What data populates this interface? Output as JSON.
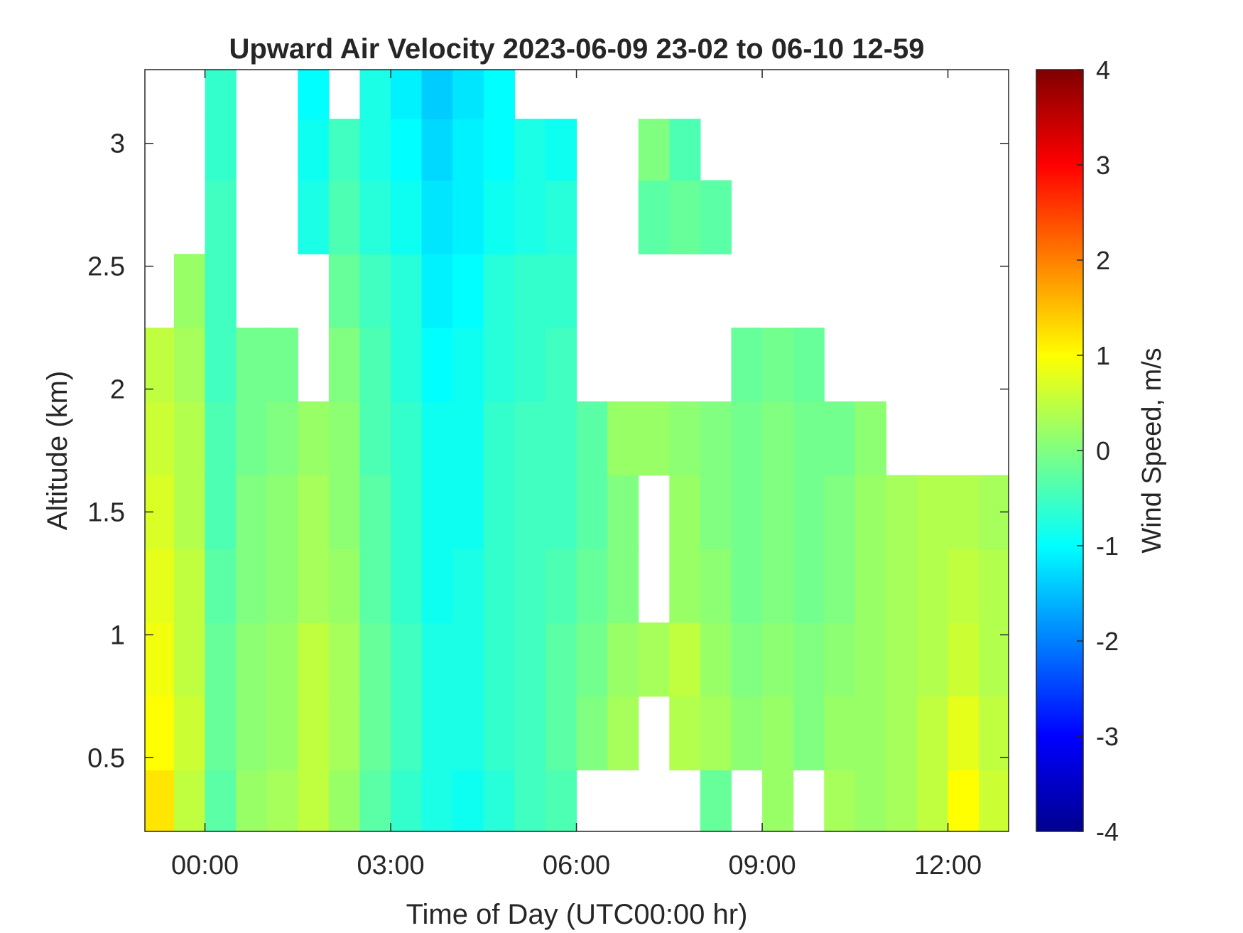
{
  "chart_data": {
    "type": "heatmap",
    "title": "Upward Air Velocity 2023-06-09 23-02 to 06-10 12-59",
    "xlabel": "Time of Day (UTC00:00 hr)",
    "ylabel": "Altitude (km)",
    "colorbar_label": "Wind Speed, m/s",
    "x_unit": "hours relative to 2023-06-10 00:00 UTC",
    "xlim": [
      -0.97,
      12.98
    ],
    "ylim": [
      0.2,
      3.3
    ],
    "clim": [
      -4,
      4
    ],
    "x_ticks": [
      0,
      3,
      6,
      9,
      12
    ],
    "x_tick_labels": [
      "00:00",
      "03:00",
      "06:00",
      "09:00",
      "12:00"
    ],
    "y_ticks": [
      0.5,
      1,
      1.5,
      2,
      2.5,
      3
    ],
    "y_tick_labels": [
      "0.5",
      "1",
      "1.5",
      "2",
      "2.5",
      "3"
    ],
    "colorbar_ticks": [
      -4,
      -3,
      -2,
      -1,
      0,
      1,
      2,
      3,
      4
    ],
    "colorbar_tick_labels": [
      "-4",
      "-3",
      "-2",
      "-1",
      "0",
      "1",
      "2",
      "3",
      "4"
    ],
    "colormap": "jet",
    "colormap_stops": [
      "#00008f",
      "#0000ff",
      "#0080ff",
      "#00ffff",
      "#80ff80",
      "#ffff00",
      "#ff8000",
      "#ff0000",
      "#800000"
    ],
    "grid": false,
    "time_bins": [
      -0.75,
      -0.25,
      0.25,
      0.75,
      1.25,
      1.75,
      2.25,
      2.75,
      3.25,
      3.75,
      4.25,
      4.75,
      5.25,
      5.75,
      6.25,
      6.75,
      7.25,
      7.75,
      8.25,
      8.75,
      9.25,
      9.75,
      10.25,
      10.75,
      11.25,
      11.75,
      12.25,
      12.75
    ],
    "altitude_bins": [
      0.3,
      0.6,
      0.9,
      1.2,
      1.5,
      1.8,
      2.1,
      2.4,
      2.7,
      3.0,
      3.2
    ],
    "values": [
      [
        1.2,
        0.5,
        -0.3,
        0.2,
        0.3,
        0.5,
        0.2,
        -0.3,
        -0.6,
        -0.8,
        -0.9,
        -0.7,
        -0.5,
        -0.4,
        null,
        null,
        null,
        null,
        -0.2,
        null,
        0.2,
        null,
        0.3,
        0.2,
        0.3,
        0.5,
        1.0,
        0.6
      ],
      [
        1.0,
        0.6,
        -0.2,
        0.1,
        0.2,
        0.5,
        0.3,
        -0.2,
        -0.5,
        -0.8,
        -0.8,
        -0.6,
        -0.5,
        -0.3,
        0.0,
        0.3,
        null,
        0.4,
        0.3,
        0.1,
        0.2,
        0.0,
        0.2,
        0.2,
        0.3,
        0.5,
        0.8,
        0.5
      ],
      [
        0.9,
        0.5,
        -0.2,
        0.1,
        0.2,
        0.5,
        0.3,
        -0.2,
        -0.5,
        -0.8,
        -0.8,
        -0.6,
        -0.5,
        -0.3,
        -0.1,
        0.2,
        0.3,
        0.5,
        0.2,
        0.0,
        0.1,
        0.0,
        0.1,
        0.2,
        0.3,
        0.4,
        0.6,
        0.4
      ],
      [
        0.8,
        0.5,
        -0.3,
        0.0,
        0.1,
        0.3,
        0.2,
        -0.3,
        -0.6,
        -0.9,
        -0.8,
        -0.6,
        -0.5,
        -0.4,
        -0.2,
        0.0,
        null,
        0.2,
        0.1,
        -0.1,
        0.0,
        -0.1,
        0.0,
        0.2,
        0.3,
        0.4,
        0.5,
        0.4
      ],
      [
        0.7,
        0.4,
        -0.4,
        0.0,
        0.1,
        0.3,
        0.1,
        -0.3,
        -0.6,
        -0.9,
        -0.9,
        -0.6,
        -0.5,
        -0.5,
        -0.3,
        0.0,
        null,
        0.2,
        0.0,
        -0.1,
        0.0,
        -0.1,
        0.0,
        0.2,
        0.3,
        0.4,
        0.4,
        0.3
      ],
      [
        0.6,
        0.4,
        -0.4,
        -0.1,
        0.0,
        0.2,
        0.1,
        -0.4,
        -0.6,
        -0.9,
        -0.9,
        -0.6,
        -0.5,
        -0.5,
        -0.3,
        0.2,
        0.2,
        0.1,
        0.0,
        -0.1,
        0.0,
        -0.1,
        -0.1,
        0.1,
        null,
        null,
        null,
        null
      ],
      [
        0.5,
        0.3,
        -0.5,
        -0.1,
        -0.1,
        null,
        0.0,
        -0.4,
        -0.7,
        -1.0,
        -0.9,
        -0.7,
        -0.6,
        -0.5,
        null,
        null,
        null,
        null,
        null,
        -0.2,
        -0.1,
        -0.2,
        null,
        null,
        null,
        null,
        null,
        null
      ],
      [
        null,
        0.2,
        -0.5,
        null,
        null,
        null,
        -0.2,
        -0.5,
        -0.7,
        -1.1,
        -1.0,
        -0.7,
        -0.6,
        -0.6,
        null,
        null,
        null,
        null,
        null,
        null,
        null,
        null,
        null,
        null,
        null,
        null,
        null,
        null
      ],
      [
        null,
        null,
        -0.5,
        null,
        null,
        -0.8,
        -0.4,
        -0.7,
        -0.9,
        -1.2,
        -1.1,
        -0.9,
        -0.8,
        -0.7,
        null,
        null,
        -0.3,
        -0.2,
        -0.3,
        null,
        null,
        null,
        null,
        null,
        null,
        null,
        null,
        null
      ],
      [
        null,
        null,
        -0.6,
        null,
        null,
        -0.9,
        -0.5,
        -0.8,
        -1.0,
        -1.3,
        -1.1,
        -1.0,
        -0.8,
        -0.9,
        null,
        null,
        0.0,
        -0.4,
        null,
        null,
        null,
        null,
        null,
        null,
        null,
        null,
        null,
        null
      ],
      [
        null,
        null,
        -0.6,
        null,
        null,
        -1.0,
        null,
        -0.8,
        -1.1,
        -1.4,
        -1.2,
        -1.0,
        null,
        null,
        null,
        null,
        null,
        null,
        null,
        null,
        null,
        null,
        null,
        null,
        null,
        null,
        null,
        null
      ]
    ]
  }
}
